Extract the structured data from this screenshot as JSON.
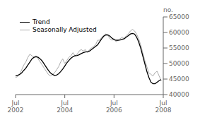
{
  "chart_data": {
    "type": "line",
    "ylabel": "no.",
    "categories": [
      "Jul\n2002",
      null,
      null,
      null,
      null,
      null,
      null,
      null,
      null,
      null,
      null,
      null,
      null,
      null,
      null,
      null,
      null,
      null,
      null,
      null,
      null,
      null,
      null,
      null,
      "Jul\n2004",
      null,
      null,
      null,
      null,
      null,
      null,
      null,
      null,
      null,
      null,
      null,
      null,
      null,
      null,
      null,
      null,
      null,
      null,
      null,
      null,
      null,
      null,
      null,
      "Jul\n2006",
      null,
      null,
      null,
      null,
      null,
      null,
      null,
      null,
      null,
      null,
      null,
      null,
      null,
      null,
      null,
      null,
      null,
      null,
      null,
      null,
      null,
      null,
      null,
      "Jul\n2008"
    ],
    "series": [
      {
        "name": "Trend",
        "color": "#000000",
        "values": [
          46000,
          46200,
          46500,
          47000,
          47800,
          48500,
          49500,
          50500,
          51500,
          52000,
          52200,
          52000,
          51500,
          50800,
          49800,
          48800,
          47800,
          47000,
          46500,
          46200,
          46300,
          46700,
          47400,
          48200,
          49200,
          50200,
          51000,
          51700,
          52200,
          52500,
          52600,
          52800,
          53200,
          53500,
          53700,
          53800,
          54000,
          54500,
          55000,
          55500,
          56000,
          57000,
          58000,
          58800,
          59200,
          59200,
          58800,
          58200,
          57700,
          57500,
          57500,
          57600,
          57800,
          58000,
          58500,
          59000,
          59500,
          59700,
          59500,
          58500,
          57000,
          55000,
          52500,
          50000,
          47500,
          45500,
          44000,
          43500,
          43500,
          44000,
          44500,
          44800,
          null
        ]
      },
      {
        "name": "Seasonally Adjusted",
        "color": "#aaaaaa",
        "values": [
          45500,
          45800,
          46500,
          48000,
          49500,
          50500,
          52000,
          53000,
          52500,
          52000,
          52500,
          51500,
          50500,
          49500,
          48500,
          47500,
          46500,
          46000,
          46500,
          47000,
          48000,
          49000,
          50500,
          51500,
          50000,
          51000,
          52000,
          52500,
          53500,
          52500,
          53000,
          54000,
          54500,
          54000,
          54500,
          53500,
          54500,
          55000,
          55500,
          56000,
          57500,
          57500,
          58500,
          59000,
          59500,
          59000,
          58000,
          57500,
          58000,
          57000,
          57500,
          58000,
          58500,
          58000,
          59000,
          59500,
          60500,
          61000,
          60500,
          59500,
          58000,
          56000,
          53500,
          51000,
          49000,
          47000,
          46500,
          46000,
          47000,
          47500,
          46000,
          44500,
          null
        ]
      }
    ],
    "ylim": [
      40000,
      65000
    ],
    "yticks": [
      40000,
      45000,
      50000,
      55000,
      60000,
      65000
    ],
    "grid": false,
    "legend": "upper left"
  }
}
